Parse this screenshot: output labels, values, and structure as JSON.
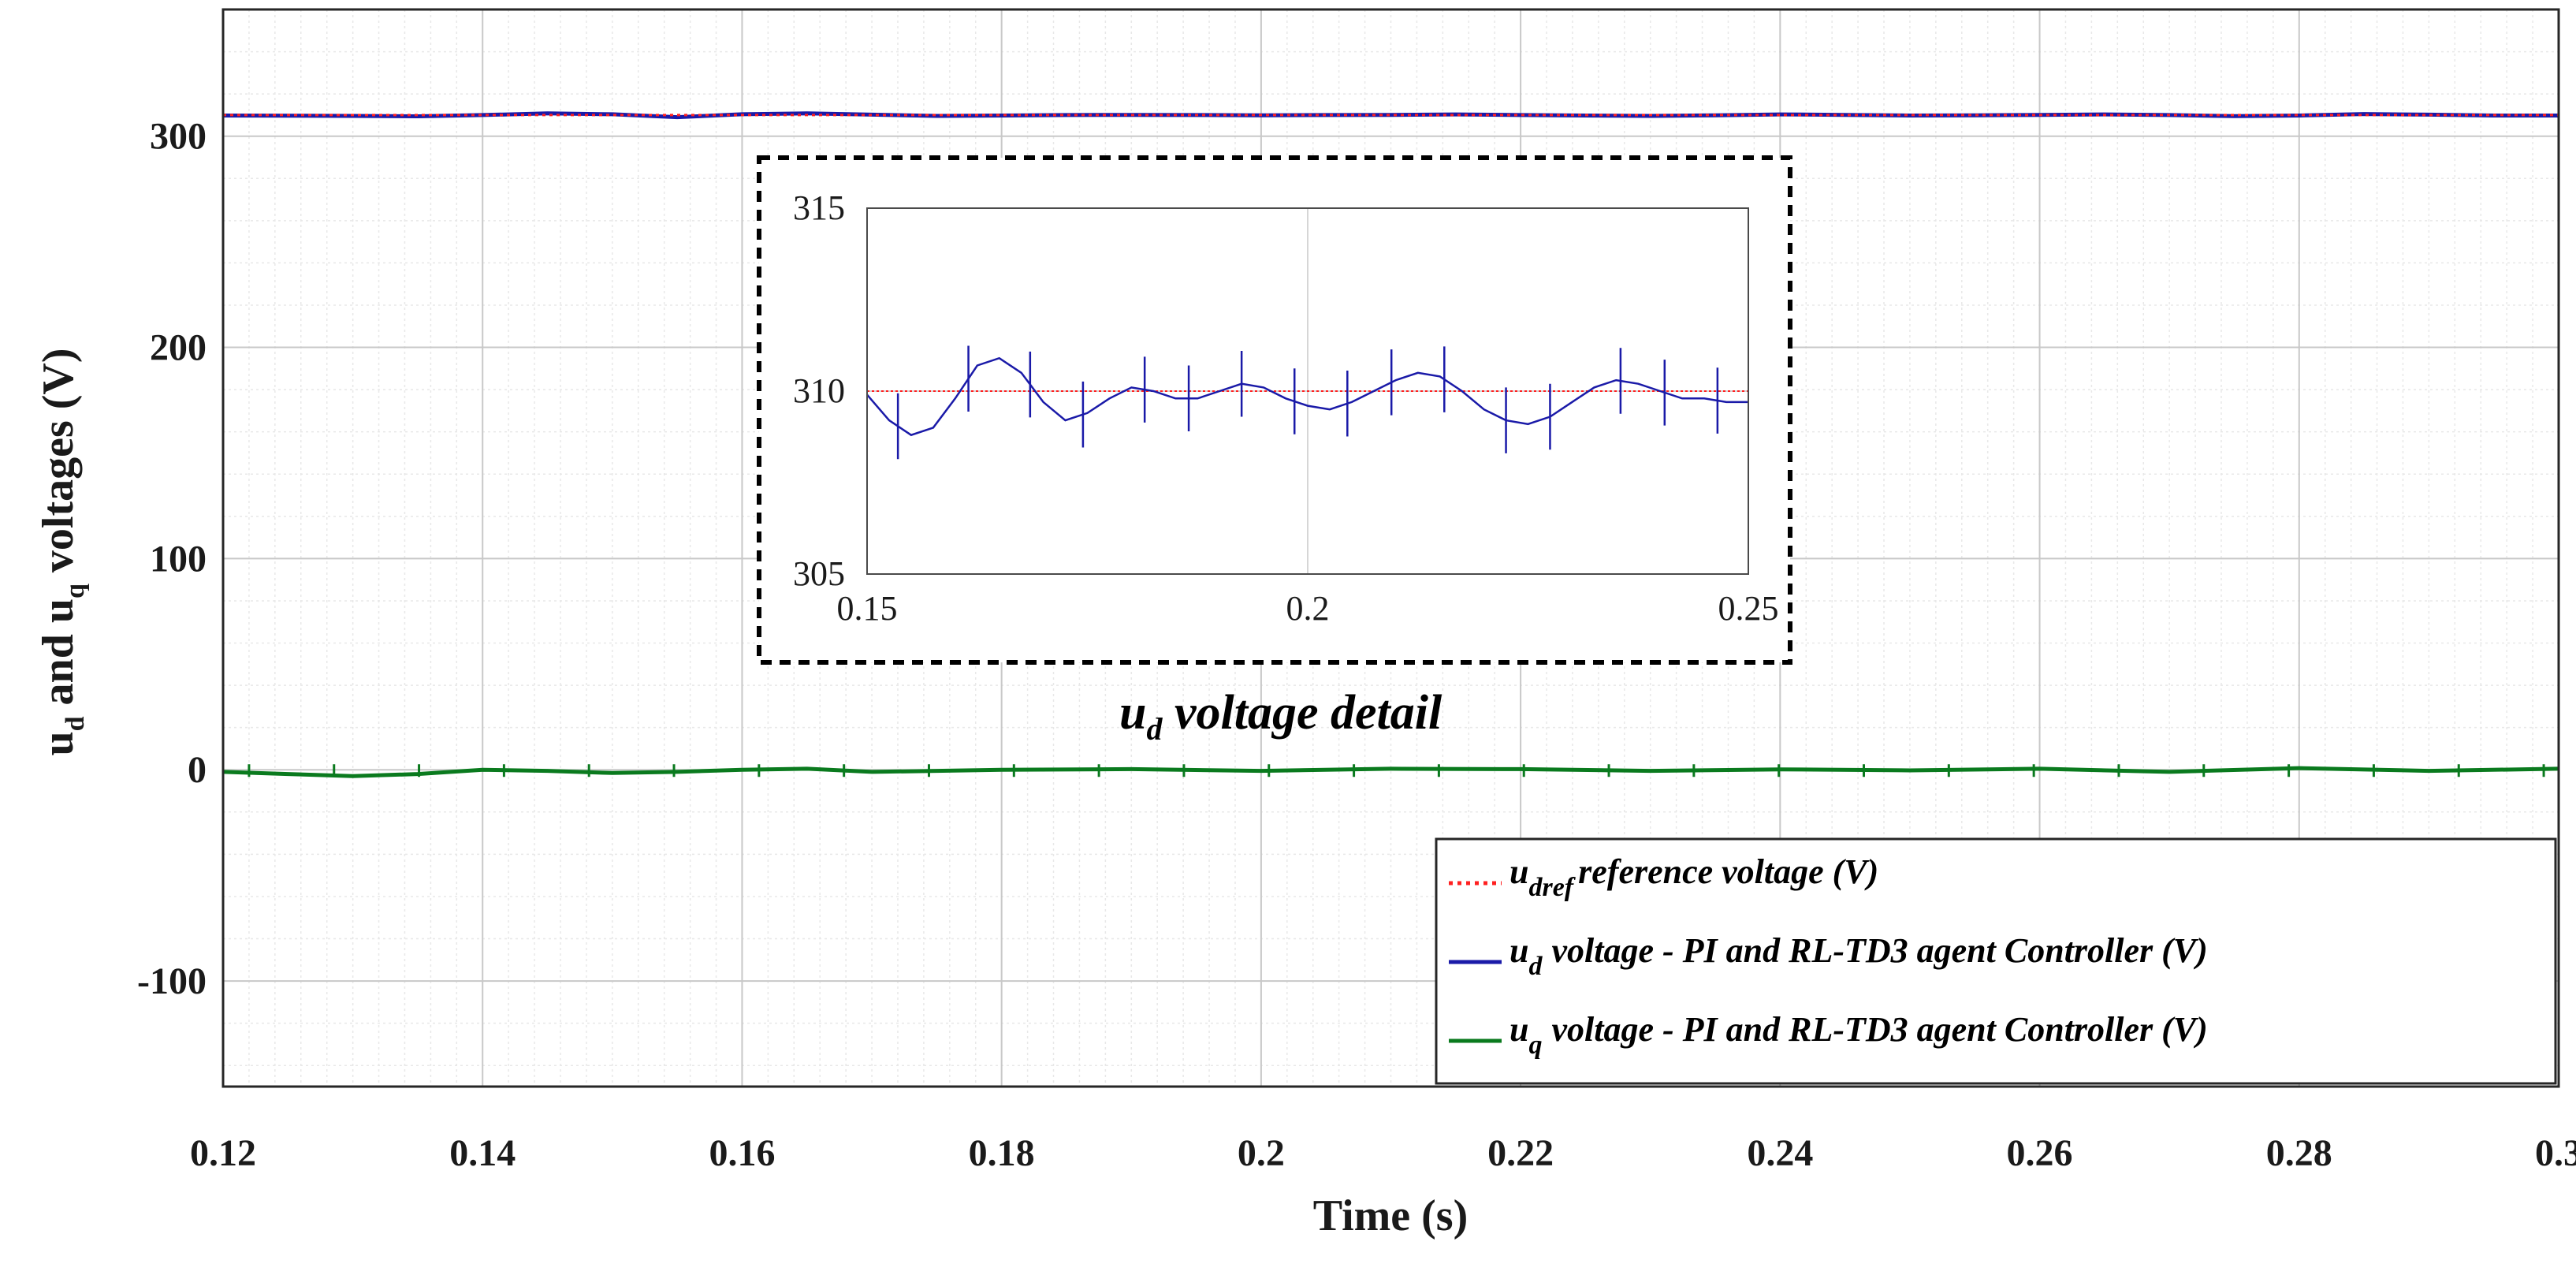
{
  "chart_data": {
    "type": "line",
    "xlabel": "Time (s)",
    "ylabel": {
      "main": "u",
      "sub_d": "d",
      "and": " and u",
      "sub_q": "q",
      "rest": " voltages (V)"
    },
    "xlim": [
      0.12,
      0.3
    ],
    "ylim": [
      -150,
      360
    ],
    "xticks": [
      "0.12",
      "0.14",
      "0.16",
      "0.18",
      "0.2",
      "0.22",
      "0.24",
      "0.26",
      "0.28",
      "0.3"
    ],
    "yticks": [
      "-100",
      "0",
      "100",
      "200",
      "300"
    ],
    "grid": true,
    "minor_grid": true,
    "colors": {
      "reference": "#ff2020",
      "ud": "#1a1aa8",
      "uq": "#0a7a1e",
      "grid_major": "#c8c8c8",
      "grid_minor": "#e8e8e8"
    },
    "series": [
      {
        "name": "u_dref reference voltage (V)",
        "style": "dotted",
        "x": [
          0.12,
          0.3
        ],
        "values": [
          310,
          310
        ]
      },
      {
        "name": "u_d voltage - PI and RL-TD3 agent Controller (V)",
        "style": "solid",
        "x": [
          0.12,
          0.13,
          0.135,
          0.14,
          0.145,
          0.15,
          0.155,
          0.16,
          0.165,
          0.17,
          0.175,
          0.18,
          0.185,
          0.19,
          0.195,
          0.2,
          0.205,
          0.21,
          0.215,
          0.22,
          0.225,
          0.23,
          0.235,
          0.24,
          0.245,
          0.25,
          0.255,
          0.26,
          0.265,
          0.27,
          0.275,
          0.28,
          0.285,
          0.29,
          0.295,
          0.3
        ],
        "values": [
          309.8,
          309.6,
          309.4,
          310.0,
          310.8,
          310.4,
          309.0,
          310.4,
          310.8,
          310.2,
          309.6,
          309.8,
          310.0,
          310.1,
          310.0,
          309.9,
          310.0,
          310.1,
          310.3,
          310.0,
          309.8,
          309.6,
          309.9,
          310.3,
          310.1,
          309.8,
          309.9,
          310.1,
          310.3,
          310.0,
          309.5,
          309.8,
          310.5,
          310.2,
          309.8,
          309.8
        ]
      },
      {
        "name": "u_q voltage - PI and RL-TD3 agent Controller (V)",
        "style": "solid",
        "x": [
          0.12,
          0.125,
          0.13,
          0.135,
          0.14,
          0.145,
          0.15,
          0.155,
          0.16,
          0.165,
          0.17,
          0.175,
          0.18,
          0.19,
          0.2,
          0.21,
          0.22,
          0.23,
          0.24,
          0.25,
          0.26,
          0.27,
          0.28,
          0.29,
          0.3
        ],
        "values": [
          -1,
          -2,
          -3,
          -2,
          0,
          -0.5,
          -1.5,
          -1,
          0,
          0.5,
          -1,
          -0.5,
          0,
          0.3,
          -0.5,
          0.5,
          0.3,
          -0.5,
          0.2,
          -0.3,
          0.5,
          -1,
          0.8,
          -0.5,
          0.5
        ]
      }
    ],
    "legend": {
      "position": "bottom-right",
      "entries": [
        {
          "main": "u",
          "sub": "dref",
          "text": "reference voltage (V)"
        },
        {
          "main": "u",
          "sub": "d",
          "text": "voltage - PI and RL-TD3 agent Controller (V)"
        },
        {
          "main": "u",
          "sub": "q",
          "text": "voltage - PI and RL-TD3 agent Controller (V)"
        }
      ]
    },
    "inset": {
      "title_main": "u",
      "title_sub": "d",
      "title_rest": " voltage detail",
      "xlim": [
        0.15,
        0.25
      ],
      "ylim": [
        305,
        315
      ],
      "xticks": [
        "0.15",
        "0.2",
        "0.25"
      ],
      "yticks": [
        "305",
        "310",
        "315"
      ],
      "reference": 310,
      "ud_x": [
        0.15,
        0.1525,
        0.155,
        0.1575,
        0.16,
        0.1625,
        0.165,
        0.1675,
        0.17,
        0.1725,
        0.175,
        0.1775,
        0.18,
        0.1825,
        0.185,
        0.1875,
        0.19,
        0.1925,
        0.195,
        0.1975,
        0.2,
        0.2025,
        0.205,
        0.2075,
        0.21,
        0.2125,
        0.215,
        0.2175,
        0.22,
        0.2225,
        0.225,
        0.2275,
        0.23,
        0.2325,
        0.235,
        0.2375,
        0.24,
        0.2425,
        0.245,
        0.2475,
        0.25
      ],
      "ud_values": [
        309.9,
        309.2,
        308.8,
        309.0,
        309.8,
        310.7,
        310.9,
        310.5,
        309.7,
        309.2,
        309.4,
        309.8,
        310.1,
        310.0,
        309.8,
        309.8,
        310.0,
        310.2,
        310.1,
        309.8,
        309.6,
        309.5,
        309.7,
        310.0,
        310.3,
        310.5,
        310.4,
        310.0,
        309.5,
        309.2,
        309.1,
        309.3,
        309.7,
        310.1,
        310.3,
        310.2,
        310.0,
        309.8,
        309.8,
        309.7,
        309.7
      ],
      "spikes_x": [
        0.1535,
        0.1615,
        0.1685,
        0.1745,
        0.1815,
        0.1865,
        0.1925,
        0.1985,
        0.2045,
        0.2095,
        0.2155,
        0.2225,
        0.2275,
        0.2355,
        0.2405,
        0.2465
      ],
      "spike_amplitude": 0.9
    }
  }
}
